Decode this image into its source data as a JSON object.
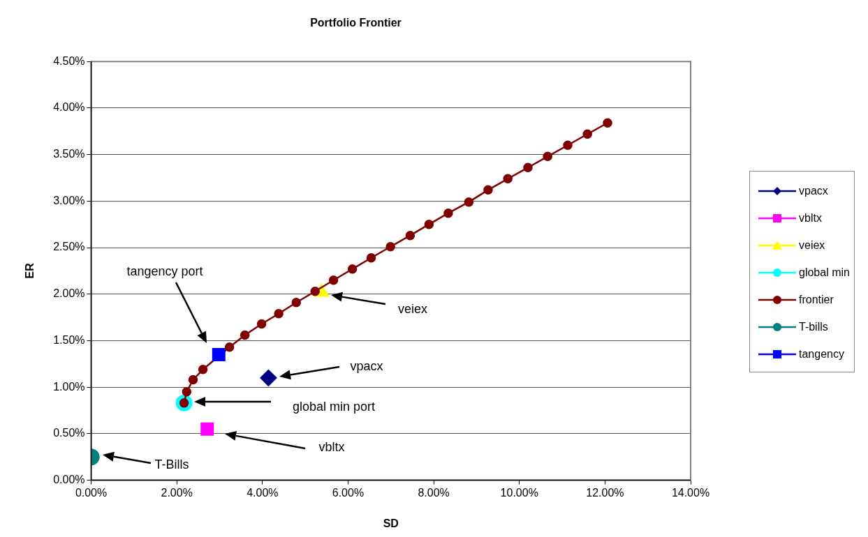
{
  "chart_data": {
    "type": "scatter",
    "title": "Portfolio Frontier",
    "xlabel": "SD",
    "ylabel": "ER",
    "xlim": [
      0,
      14
    ],
    "xticks": [
      {
        "value": 0,
        "label": "0.00%"
      },
      {
        "value": 2,
        "label": "2.00%"
      },
      {
        "value": 4,
        "label": "4.00%"
      },
      {
        "value": 6,
        "label": "6.00%"
      },
      {
        "value": 8,
        "label": "8.00%"
      },
      {
        "value": 10,
        "label": "10.00%"
      },
      {
        "value": 12,
        "label": "12.00%"
      },
      {
        "value": 14,
        "label": "14.00%"
      }
    ],
    "ylim": [
      0,
      4.5
    ],
    "yticks": [
      {
        "value": 0,
        "label": "0.00%"
      },
      {
        "value": 0.5,
        "label": "0.50%"
      },
      {
        "value": 1,
        "label": "1.00%"
      },
      {
        "value": 1.5,
        "label": "1.50%"
      },
      {
        "value": 2,
        "label": "2.00%"
      },
      {
        "value": 2.5,
        "label": "2.50%"
      },
      {
        "value": 3,
        "label": "3.00%"
      },
      {
        "value": 3.5,
        "label": "3.50%"
      },
      {
        "value": 4,
        "label": "4.00%"
      },
      {
        "value": 4.5,
        "label": "4.50%"
      }
    ],
    "grid": "y",
    "legend": "right",
    "series": [
      {
        "name": "vpacx",
        "marker": "diamond",
        "color": "#000080",
        "x": [
          4.14
        ],
        "values": [
          1.1
        ]
      },
      {
        "name": "vbltx",
        "marker": "square",
        "color": "#ff00ff",
        "x": [
          2.71
        ],
        "values": [
          0.55
        ]
      },
      {
        "name": "veiex",
        "marker": "triangle",
        "color": "#ffff00",
        "x": [
          5.38
        ],
        "values": [
          2.02
        ]
      },
      {
        "name": "global min",
        "marker": "circle",
        "color": "#00ffff",
        "x": [
          2.17
        ],
        "values": [
          0.83
        ]
      },
      {
        "name": "frontier",
        "type": "line",
        "marker": "circle",
        "color": "#800000",
        "x": [
          2.17,
          2.23,
          2.38,
          2.61,
          2.92,
          3.23,
          3.59,
          3.98,
          4.38,
          4.79,
          5.23,
          5.66,
          6.1,
          6.54,
          6.99,
          7.45,
          7.89,
          8.34,
          8.82,
          9.27,
          9.73,
          10.2,
          10.66,
          11.13,
          11.59,
          12.06
        ],
        "values": [
          0.83,
          0.95,
          1.08,
          1.19,
          null,
          1.43,
          1.56,
          1.68,
          1.79,
          1.91,
          2.03,
          2.15,
          2.27,
          2.39,
          2.51,
          2.63,
          2.75,
          2.87,
          2.99,
          3.12,
          3.24,
          3.36,
          3.48,
          3.6,
          3.72,
          3.84
        ]
      },
      {
        "name": "T-bills",
        "marker": "circle",
        "color": "#008080",
        "x": [
          0
        ],
        "values": [
          0.25
        ]
      },
      {
        "name": "tangency",
        "marker": "square",
        "color": "#0000ff",
        "x": [
          2.98
        ],
        "values": [
          1.35
        ]
      }
    ],
    "annotations": [
      "tangency port",
      "veiex",
      "vpacx",
      "global min port",
      "vbltx",
      "T-Bills"
    ]
  }
}
